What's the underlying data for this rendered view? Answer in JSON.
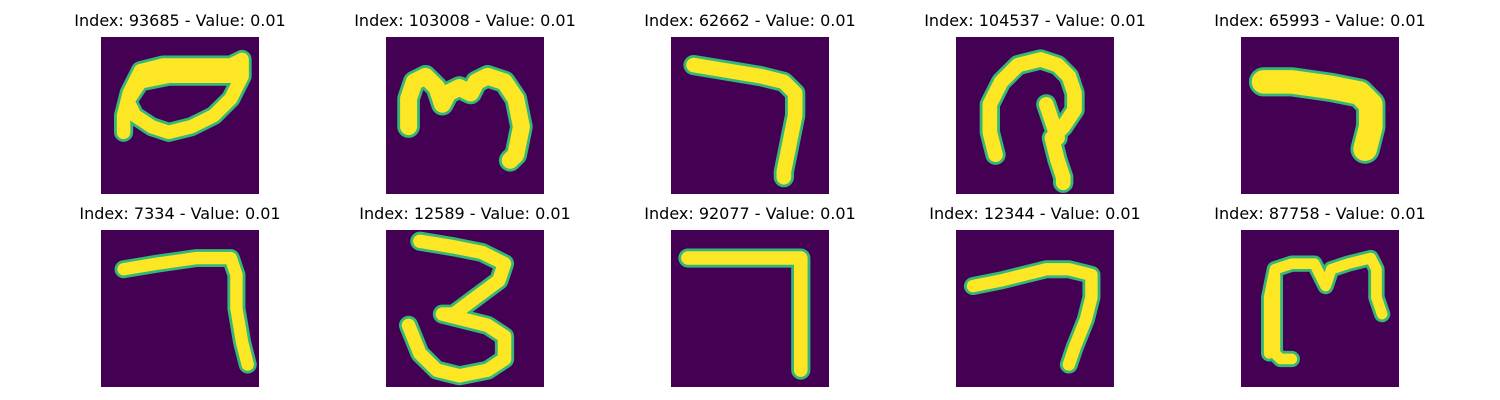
{
  "colors": {
    "background": "#440154",
    "stroke": "#fde725",
    "edge": "#35b779"
  },
  "panels": [
    {
      "title": "Index: 93685 - Value: 0.01",
      "glyph": "bowl-shape"
    },
    {
      "title": "Index: 103008 - Value: 0.01",
      "glyph": "m-shape"
    },
    {
      "title": "Index: 62662 - Value: 0.01",
      "glyph": "seven-shape"
    },
    {
      "title": "Index: 104537 - Value: 0.01",
      "glyph": "hook-shape"
    },
    {
      "title": "Index: 65993 - Value: 0.01",
      "glyph": "bold-seven-shape"
    },
    {
      "title": "Index: 7334 - Value: 0.01",
      "glyph": "seven-shape"
    },
    {
      "title": "Index: 12589 - Value: 0.01",
      "glyph": "three-shape"
    },
    {
      "title": "Index: 92077 - Value: 0.01",
      "glyph": "seven-shape"
    },
    {
      "title": "Index: 12344 - Value: 0.01",
      "glyph": "seven-shape"
    },
    {
      "title": "Index: 87758 - Value: 0.01",
      "glyph": "m-shape"
    }
  ]
}
